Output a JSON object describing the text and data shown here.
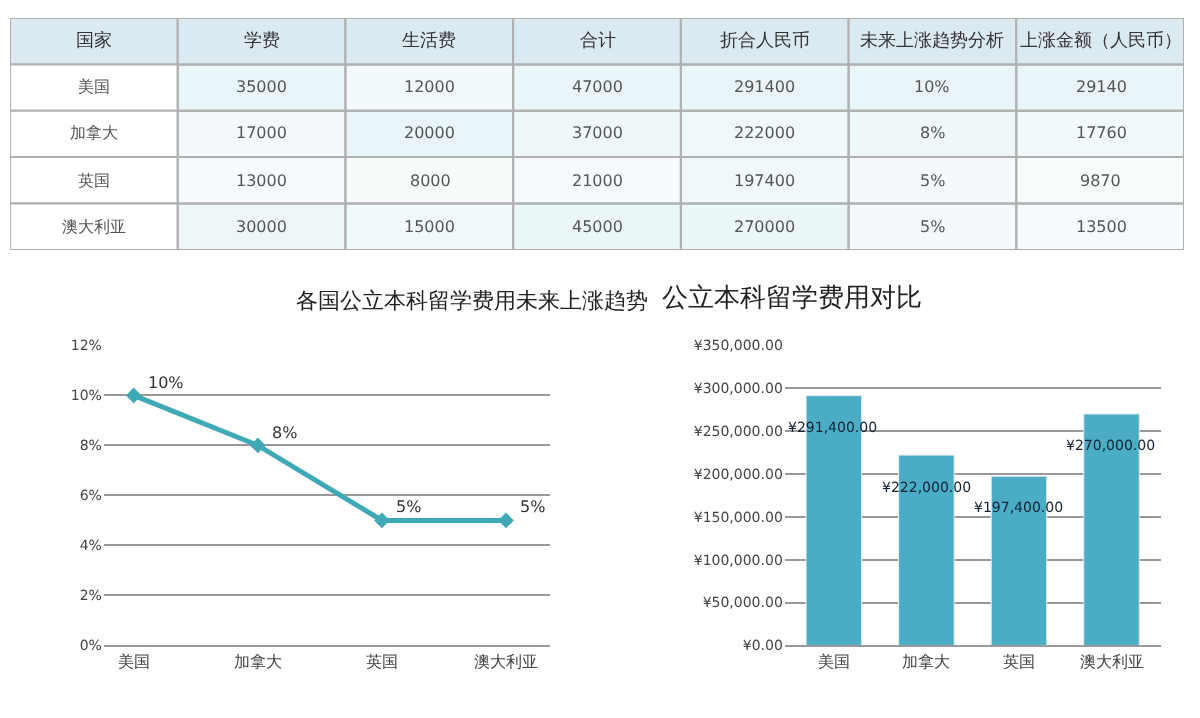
{
  "chart_data": [
    {
      "type": "heatmap",
      "ylabel": "国家",
      "categories": [
        "学费",
        "生活费",
        "合计",
        "折合人民币",
        "未来上涨趋势分析",
        "上涨金额（人民币）"
      ],
      "y_categories": [
        "美国",
        "加拿大",
        "英国",
        "澳大利亚"
      ],
      "cells": [
        [
          35000,
          12000,
          47000,
          291400,
          10,
          29140
        ],
        [
          17000,
          20000,
          37000,
          222000,
          8,
          17760
        ],
        [
          13000,
          8000,
          21000,
          197400,
          5,
          9870
        ],
        [
          30000,
          15000,
          45000,
          270000,
          5,
          13500
        ]
      ],
      "cell_labels": [
        [
          "35000",
          "12000",
          "47000",
          "291400",
          "10%",
          "29140"
        ],
        [
          "17000",
          "20000",
          "37000",
          "222000",
          "8%",
          "17760"
        ],
        [
          "13000",
          "8000",
          "21000",
          "197400",
          "5%",
          "9870"
        ],
        [
          "30000",
          "15000",
          "45000",
          "270000",
          "5%",
          "13500"
        ]
      ]
    },
    {
      "type": "line",
      "title": "各国公立本科留学费用未来上涨趋势",
      "categories": [
        "美国",
        "加拿大",
        "英国",
        "澳大利亚"
      ],
      "values": [
        10,
        8,
        5,
        5
      ],
      "value_labels": [
        "10%",
        "8%",
        "5%",
        "5%"
      ],
      "color": "#3fa9b8",
      "marker": "diamond",
      "ylim": [
        0,
        12
      ],
      "yticks": [
        {
          "value": 0,
          "label": "0%"
        },
        {
          "value": 2,
          "label": "2%"
        },
        {
          "value": 4,
          "label": "4%"
        },
        {
          "value": 6,
          "label": "6%"
        },
        {
          "value": 8,
          "label": "8%"
        },
        {
          "value": 10,
          "label": "10%"
        },
        {
          "value": 12,
          "label": "12%"
        }
      ],
      "grid": "y"
    },
    {
      "type": "bar",
      "title": "公立本科留学费用对比",
      "categories": [
        "美国",
        "加拿大",
        "英国",
        "澳大利亚"
      ],
      "values": [
        291400,
        222000,
        197400,
        270000
      ],
      "value_labels": [
        "¥291,400.00",
        "¥222,000.00",
        "¥197,400.00",
        "¥270,000.00"
      ],
      "color": "#4bacc6",
      "ylim": [
        0,
        350000
      ],
      "yticks": [
        {
          "value": 0,
          "label": "¥0.00"
        },
        {
          "value": 50000,
          "label": "¥50,000.00"
        },
        {
          "value": 100000,
          "label": "¥100,000.00"
        },
        {
          "value": 150000,
          "label": "¥150,000.00"
        },
        {
          "value": 200000,
          "label": "¥200,000.00"
        },
        {
          "value": 250000,
          "label": "¥250,000.00"
        },
        {
          "value": 300000,
          "label": "¥300,000.00"
        },
        {
          "value": 350000,
          "label": "¥350,000.00"
        }
      ],
      "grid": "y"
    }
  ]
}
